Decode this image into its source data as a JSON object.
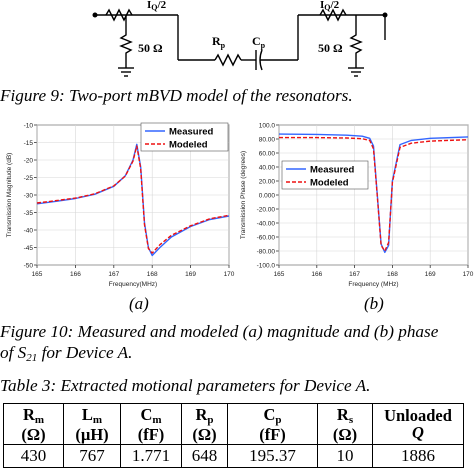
{
  "circuit": {
    "left_current_label": "I",
    "left_current_sub": "Q",
    "left_current_tail": "/2",
    "right_current_label": "I",
    "right_current_sub": "Q",
    "right_current_tail": "/2",
    "left_load": "50 Ω",
    "right_load": "50 Ω",
    "rp_label": "R",
    "rp_sub": "p",
    "cp_label": "C",
    "cp_sub": "p"
  },
  "figure9_caption": "Figure 9: Two-port mBVD model of the resonators.",
  "figure10": {
    "caption_line1": "Figure 10: Measured and modeled (a) magnitude and (b) phase",
    "caption_line2_prefix": "of S",
    "caption_line2_sub": "21",
    "caption_line2_suffix": " for Device A.",
    "label_a": "(a)",
    "label_b": "(b)"
  },
  "chart_data": [
    {
      "type": "line",
      "title": "",
      "xlabel": "Frequency(MHz)",
      "ylabel": "Transmission Magnitude (dB)",
      "xlim": [
        165,
        170
      ],
      "ylim": [
        -50,
        -10
      ],
      "x_ticks": [
        "165",
        "166",
        "167",
        "168",
        "169",
        "170"
      ],
      "y_ticks": [
        "-10",
        "-15",
        "-20",
        "-25",
        "-30",
        "-35",
        "-40",
        "-45",
        "-50"
      ],
      "legend_position": "top-right",
      "series": [
        {
          "name": "Measured",
          "color": "#3366ff",
          "dash": "solid",
          "x": [
            165.0,
            165.5,
            166.0,
            166.5,
            167.0,
            167.3,
            167.5,
            167.6,
            167.7,
            167.8,
            167.9,
            168.0,
            168.2,
            168.5,
            169.0,
            169.5,
            170.0
          ],
          "y": [
            -32.5,
            -31.8,
            -31.0,
            -29.8,
            -27.5,
            -24.5,
            -20.0,
            -15.5,
            -22.0,
            -38.0,
            -45.0,
            -47.3,
            -45.0,
            -42.0,
            -39.0,
            -37.0,
            -36.0
          ]
        },
        {
          "name": "Modeled",
          "color": "#ee1111",
          "dash": "dashed",
          "x": [
            165.0,
            165.5,
            166.0,
            166.5,
            167.0,
            167.3,
            167.5,
            167.6,
            167.7,
            167.8,
            167.9,
            168.0,
            168.2,
            168.5,
            169.0,
            169.5,
            170.0
          ],
          "y": [
            -32.3,
            -31.6,
            -30.9,
            -29.7,
            -27.4,
            -24.6,
            -20.3,
            -16.0,
            -22.5,
            -38.5,
            -45.3,
            -46.6,
            -44.2,
            -41.5,
            -38.8,
            -36.8,
            -35.8
          ]
        }
      ]
    },
    {
      "type": "line",
      "title": "",
      "xlabel": "Frequency (MHz)",
      "ylabel": "Transmission Phase (degrees)",
      "xlim": [
        165,
        170
      ],
      "ylim": [
        -100,
        100
      ],
      "x_ticks": [
        "165",
        "166",
        "167",
        "168",
        "169",
        "170"
      ],
      "y_ticks": [
        "100.0",
        "80.00",
        "60.00",
        "40.00",
        "20.00",
        "0.000",
        "-20.00",
        "-40.00",
        "-60.00",
        "-80.00",
        "-100.0"
      ],
      "legend_position": "center-left",
      "series": [
        {
          "name": "Measured",
          "color": "#3366ff",
          "dash": "solid",
          "x": [
            165.0,
            166.0,
            166.8,
            167.2,
            167.4,
            167.5,
            167.6,
            167.7,
            167.8,
            167.9,
            168.0,
            168.2,
            168.5,
            169.0,
            170.0
          ],
          "y": [
            87.0,
            86.5,
            85.5,
            84.0,
            81.0,
            70.0,
            0.0,
            -70.0,
            -82.0,
            -72.0,
            20.0,
            72.0,
            78.0,
            81.0,
            83.0
          ]
        },
        {
          "name": "Modeled",
          "color": "#ee1111",
          "dash": "dashed",
          "x": [
            165.0,
            166.0,
            166.8,
            167.2,
            167.4,
            167.5,
            167.6,
            167.7,
            167.8,
            167.9,
            168.0,
            168.2,
            168.5,
            169.0,
            170.0
          ],
          "y": [
            82.0,
            82.0,
            81.5,
            80.5,
            78.0,
            66.0,
            -2.0,
            -72.0,
            -80.0,
            -68.0,
            18.0,
            68.0,
            74.0,
            77.0,
            79.0
          ]
        }
      ]
    }
  ],
  "table3": {
    "caption": "Table 3: Extracted motional parameters for Device A.",
    "headers": [
      {
        "sym": "R",
        "sub": "m",
        "unit": "(Ω)"
      },
      {
        "sym": "L",
        "sub": "m",
        "unit": "(µH)"
      },
      {
        "sym": "C",
        "sub": "m",
        "unit": "(fF)"
      },
      {
        "sym": "R",
        "sub": "p",
        "unit": "(Ω)"
      },
      {
        "sym": "C",
        "sub": "p",
        "unit": "(fF)"
      },
      {
        "sym": "R",
        "sub": "s",
        "unit": "(Ω)"
      },
      {
        "sym": "Unloaded",
        "sub": "",
        "unit": "Q"
      }
    ],
    "values": [
      "430",
      "767",
      "1.771",
      "648",
      "195.37",
      "10",
      "1886"
    ]
  }
}
